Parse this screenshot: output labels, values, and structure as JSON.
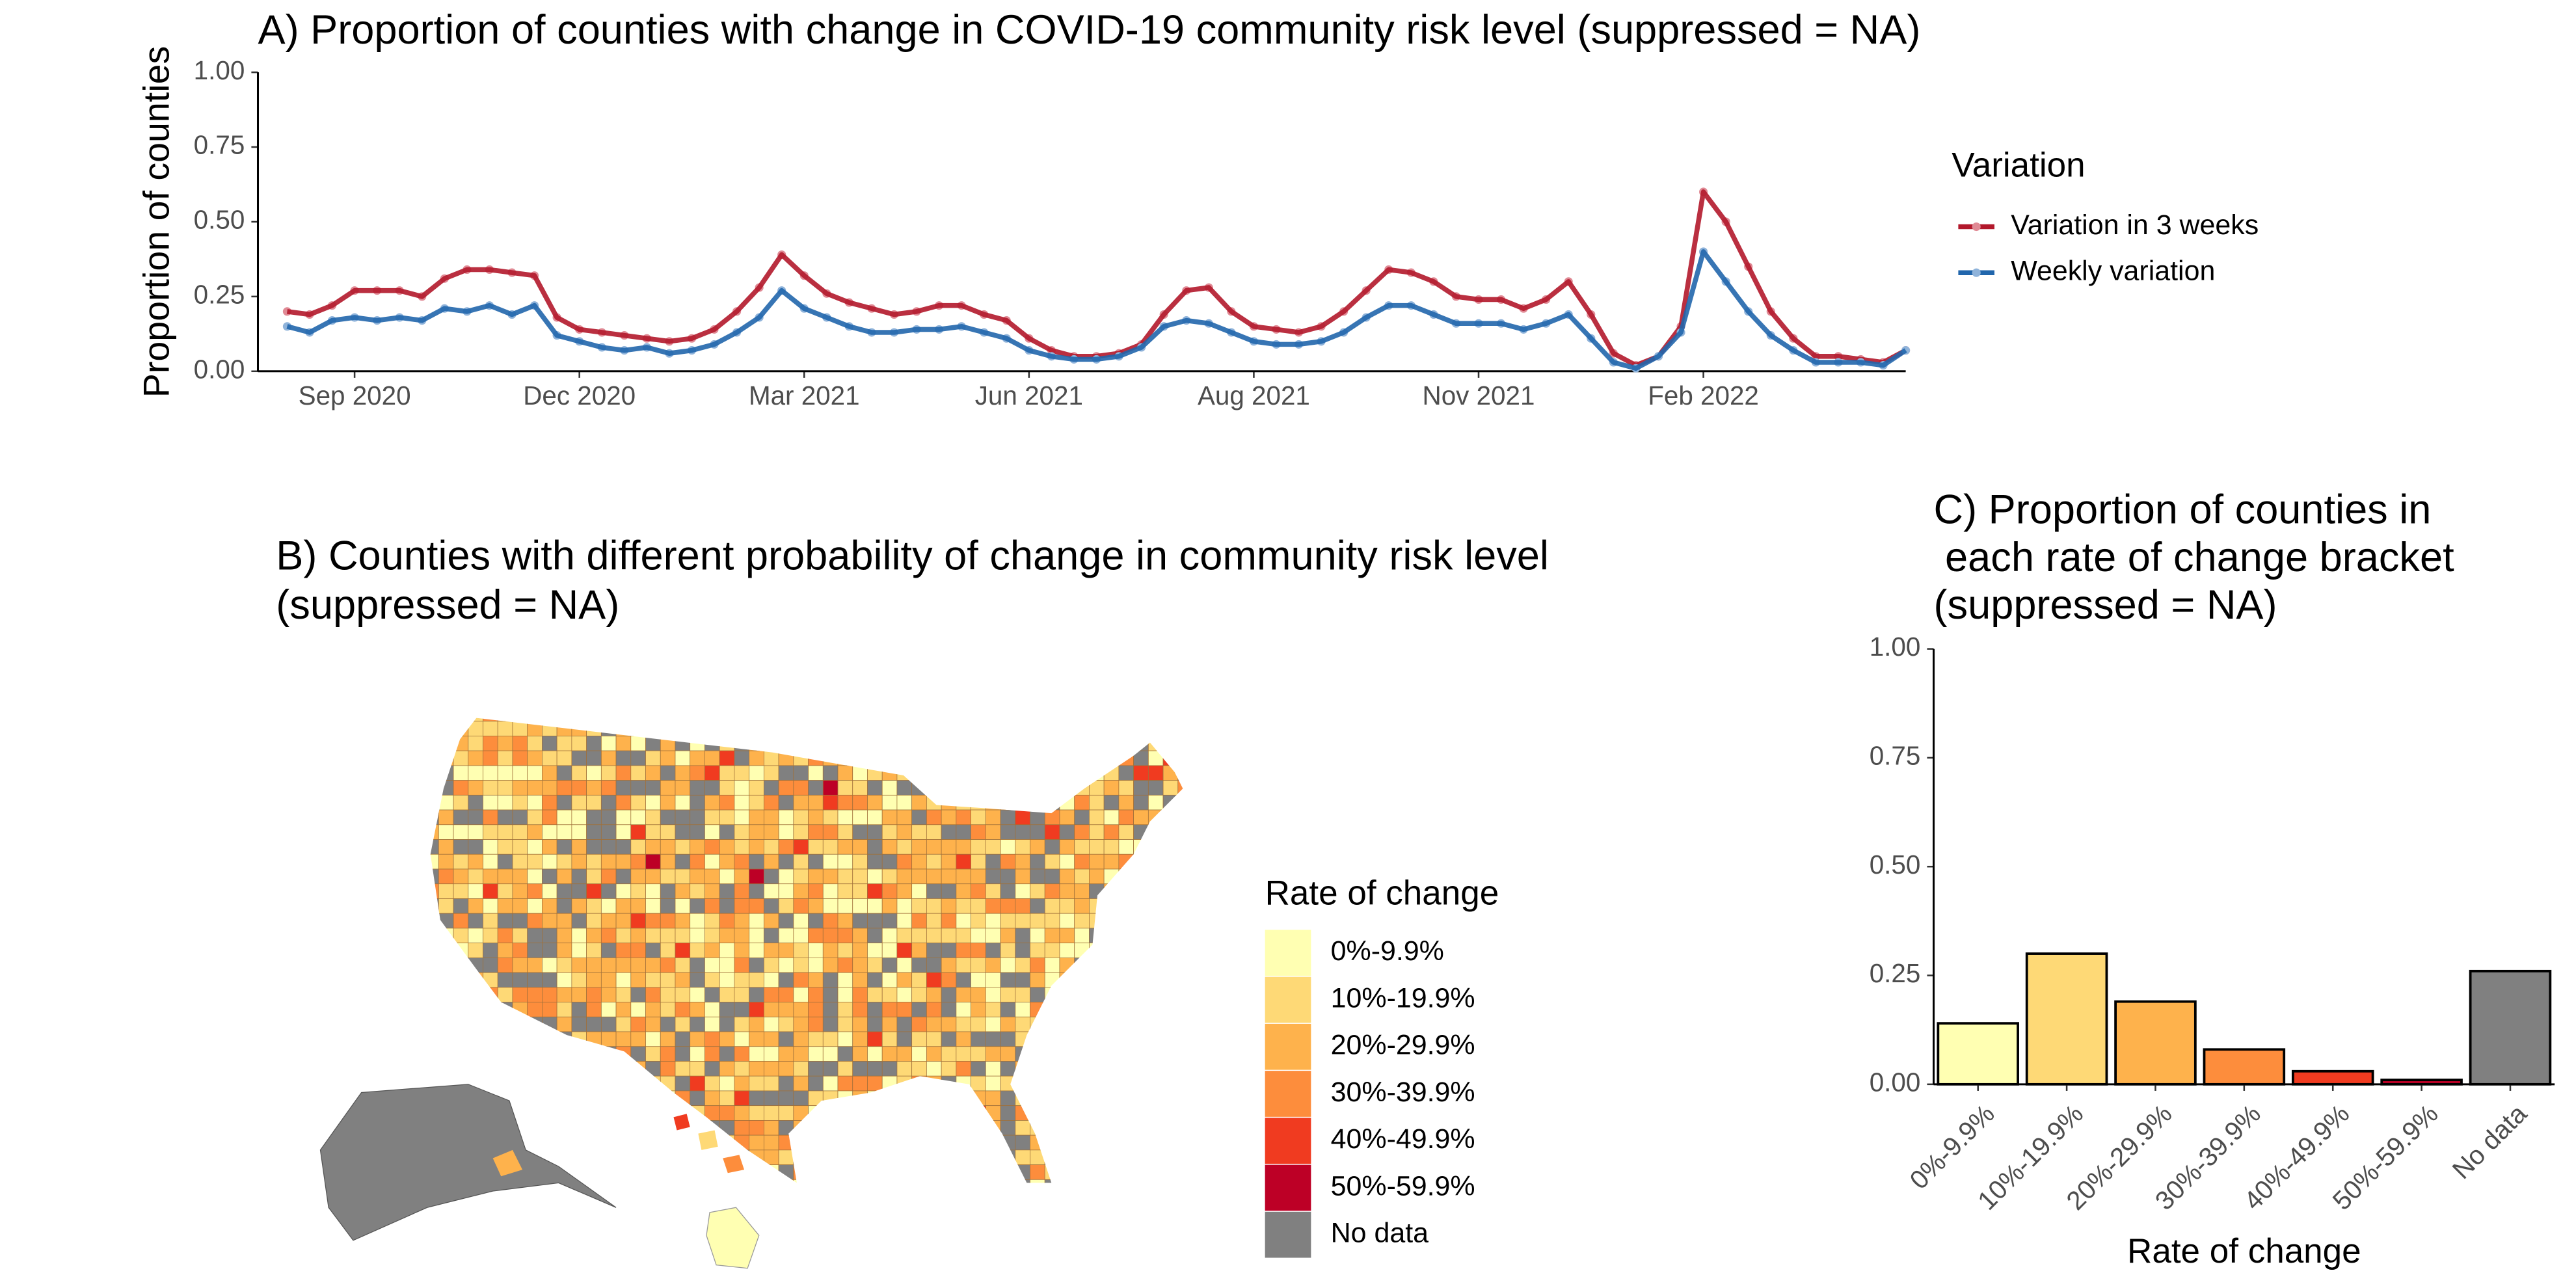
{
  "chart_data": [
    {
      "type": "line",
      "title": "A) Proportion of counties with change in COVID-19 community risk level (suppressed = NA)",
      "ylabel": "Proportion of counties",
      "legend_title": "Variation",
      "legend": "right",
      "x": [
        0,
        1,
        2,
        3,
        4,
        5,
        6,
        7,
        8,
        9,
        10,
        11,
        12,
        13,
        14,
        15,
        16,
        17,
        18,
        19,
        20,
        21,
        22,
        23,
        24,
        25,
        26,
        27,
        28,
        29,
        30,
        31,
        32,
        33,
        34,
        35,
        36,
        37,
        38,
        39,
        40,
        41,
        42,
        43,
        44,
        45,
        46,
        47,
        48,
        49,
        50,
        51,
        52,
        53,
        54,
        55,
        56,
        57,
        58,
        59,
        60,
        61,
        62,
        63,
        64,
        65,
        66,
        67,
        68,
        69,
        70,
        71,
        72
      ],
      "xlim": [
        -1.3,
        72
      ],
      "xticks": [
        {
          "value": 3,
          "label": "Sep 2020"
        },
        {
          "value": 13,
          "label": "Dec 2020"
        },
        {
          "value": 23,
          "label": "Mar 2021"
        },
        {
          "value": 33,
          "label": "Jun 2021"
        },
        {
          "value": 43,
          "label": "Aug 2021"
        },
        {
          "value": 53,
          "label": "Nov 2021"
        },
        {
          "value": 63,
          "label": "Feb 2022"
        }
      ],
      "ylim": [
        0,
        1
      ],
      "yticks": [
        {
          "value": 0,
          "label": "0.00"
        },
        {
          "value": 0.25,
          "label": "0.25"
        },
        {
          "value": 0.5,
          "label": "0.50"
        },
        {
          "value": 0.75,
          "label": "0.75"
        },
        {
          "value": 1,
          "label": "1.00"
        }
      ],
      "series": [
        {
          "name": "Variation in 3 weeks",
          "color": "#b2182b",
          "point_color": "#e08a95",
          "values": [
            0.2,
            0.19,
            0.22,
            0.27,
            0.27,
            0.27,
            0.25,
            0.31,
            0.34,
            0.34,
            0.33,
            0.32,
            0.18,
            0.14,
            0.13,
            0.12,
            0.11,
            0.1,
            0.11,
            0.14,
            0.2,
            0.28,
            0.39,
            0.32,
            0.26,
            0.23,
            0.21,
            0.19,
            0.2,
            0.22,
            0.22,
            0.19,
            0.17,
            0.11,
            0.07,
            0.05,
            0.05,
            0.06,
            0.09,
            0.19,
            0.27,
            0.28,
            0.2,
            0.15,
            0.14,
            0.13,
            0.15,
            0.2,
            0.27,
            0.34,
            0.33,
            0.3,
            0.25,
            0.24,
            0.24,
            0.21,
            0.24,
            0.3,
            0.19,
            0.06,
            0.02,
            0.05,
            0.15,
            0.6,
            0.5,
            0.35,
            0.2,
            0.11,
            0.05,
            0.05,
            0.04,
            0.03,
            0.07
          ]
        },
        {
          "name": "Weekly variation",
          "color": "#2166ac",
          "point_color": "#8fb3da",
          "values": [
            0.15,
            0.13,
            0.17,
            0.18,
            0.17,
            0.18,
            0.17,
            0.21,
            0.2,
            0.22,
            0.19,
            0.22,
            0.12,
            0.1,
            0.08,
            0.07,
            0.08,
            0.06,
            0.07,
            0.09,
            0.13,
            0.18,
            0.27,
            0.21,
            0.18,
            0.15,
            0.13,
            0.13,
            0.14,
            0.14,
            0.15,
            0.13,
            0.11,
            0.07,
            0.05,
            0.04,
            0.04,
            0.05,
            0.08,
            0.15,
            0.17,
            0.16,
            0.13,
            0.1,
            0.09,
            0.09,
            0.1,
            0.13,
            0.18,
            0.22,
            0.22,
            0.19,
            0.16,
            0.16,
            0.16,
            0.14,
            0.16,
            0.19,
            0.11,
            0.03,
            0.01,
            0.05,
            0.13,
            0.4,
            0.3,
            0.2,
            0.12,
            0.07,
            0.03,
            0.03,
            0.03,
            0.02,
            0.07
          ]
        }
      ]
    },
    {
      "type": "map",
      "title": [
        "B) Counties with different probability of change in community risk level",
        "(suppressed = NA)"
      ],
      "legend_title": "Rate of change",
      "legend": [
        {
          "label": "0%-9.9%",
          "color": "#ffffb2"
        },
        {
          "label": "10%-19.9%",
          "color": "#fed976"
        },
        {
          "label": "20%-29.9%",
          "color": "#feb24c"
        },
        {
          "label": "30%-39.9%",
          "color": "#fd8d3c"
        },
        {
          "label": "40%-49.9%",
          "color": "#f03b20"
        },
        {
          "label": "50%-59.9%",
          "color": "#bd0026"
        },
        {
          "label": "No data",
          "color": "#808080"
        }
      ]
    },
    {
      "type": "bar",
      "title": [
        "C) Proportion of counties in",
        " each rate of change bracket",
        "(suppressed = NA)"
      ],
      "xlabel": "Rate of change",
      "categories": [
        "0%-9.9%",
        "10%-19.9%",
        "20%-29.9%",
        "30%-39.9%",
        "40%-49.9%",
        "50%-59.9%",
        "No data"
      ],
      "values": [
        0.14,
        0.3,
        0.19,
        0.08,
        0.03,
        0.01,
        0.26
      ],
      "colors": [
        "#ffffb2",
        "#fed976",
        "#feb24c",
        "#fd8d3c",
        "#f03b20",
        "#bd0026",
        "#808080"
      ],
      "ylim": [
        0,
        1
      ],
      "yticks": [
        {
          "value": 0,
          "label": "0.00"
        },
        {
          "value": 0.25,
          "label": "0.25"
        },
        {
          "value": 0.5,
          "label": "0.50"
        },
        {
          "value": 0.75,
          "label": "0.75"
        },
        {
          "value": 1,
          "label": "1.00"
        }
      ]
    }
  ]
}
